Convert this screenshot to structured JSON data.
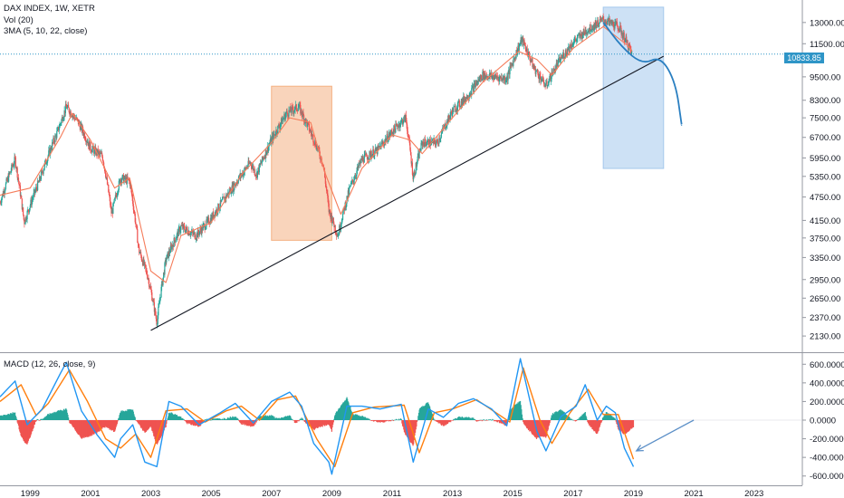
{
  "chart_data": [
    {
      "type": "candlestick",
      "title": "DAX INDEX, 1W, XETR",
      "indicators": [
        "Vol (20)",
        "3MA (5, 10, 22, close)"
      ],
      "y_scale": "log",
      "ylim": [
        1950,
        14800
      ],
      "y_ticks": [
        "13000.00",
        "11500.00",
        "10833.85",
        "9500.00",
        "8300.00",
        "7500.00",
        "6700.00",
        "5950.00",
        "5350.00",
        "4750.00",
        "4150.00",
        "3750.00",
        "3350.00",
        "2950.00",
        "2650.00",
        "2370.00",
        "2130.00"
      ],
      "x_ticks": [
        "1999",
        "2001",
        "2003",
        "2005",
        "2007",
        "2009",
        "2011",
        "2013",
        "2015",
        "2017",
        "2019",
        "2021",
        "2023"
      ],
      "last_price": "10833.85",
      "price_path": [
        [
          1998.0,
          4600
        ],
        [
          1998.5,
          5900
        ],
        [
          1998.8,
          4100
        ],
        [
          1999.3,
          5200
        ],
        [
          1999.9,
          6900
        ],
        [
          2000.2,
          8000
        ],
        [
          2000.6,
          7300
        ],
        [
          2001.0,
          6300
        ],
        [
          2001.4,
          6000
        ],
        [
          2001.7,
          4300
        ],
        [
          2002.0,
          5300
        ],
        [
          2002.3,
          5200
        ],
        [
          2002.6,
          3500
        ],
        [
          2002.9,
          3000
        ],
        [
          2003.2,
          2300
        ],
        [
          2003.5,
          3300
        ],
        [
          2004.0,
          4000
        ],
        [
          2004.5,
          3800
        ],
        [
          2005.0,
          4200
        ],
        [
          2005.7,
          5000
        ],
        [
          2006.3,
          5800
        ],
        [
          2006.5,
          5400
        ],
        [
          2007.0,
          6600
        ],
        [
          2007.5,
          7700
        ],
        [
          2007.9,
          8000
        ],
        [
          2008.3,
          6900
        ],
        [
          2008.7,
          5800
        ],
        [
          2008.9,
          4400
        ],
        [
          2009.2,
          3800
        ],
        [
          2009.6,
          5000
        ],
        [
          2010.0,
          5900
        ],
        [
          2010.5,
          6200
        ],
        [
          2011.2,
          7200
        ],
        [
          2011.45,
          7500
        ],
        [
          2011.7,
          5300
        ],
        [
          2012.0,
          6500
        ],
        [
          2012.5,
          6500
        ],
        [
          2013.0,
          7800
        ],
        [
          2013.5,
          8500
        ],
        [
          2014.0,
          9600
        ],
        [
          2014.8,
          9400
        ],
        [
          2015.3,
          11800
        ],
        [
          2015.7,
          10000
        ],
        [
          2016.1,
          9000
        ],
        [
          2016.5,
          10300
        ],
        [
          2017.0,
          11600
        ],
        [
          2017.5,
          12500
        ],
        [
          2018.0,
          13200
        ],
        [
          2018.5,
          12700
        ],
        [
          2018.96,
          10833.85
        ]
      ],
      "ma_path": [
        [
          1998.0,
          4800
        ],
        [
          1999.0,
          5000
        ],
        [
          2000.0,
          6700
        ],
        [
          2000.4,
          7700
        ],
        [
          2001.0,
          6600
        ],
        [
          2001.8,
          5000
        ],
        [
          2002.3,
          5300
        ],
        [
          2003.0,
          3100
        ],
        [
          2003.5,
          2900
        ],
        [
          2004.0,
          3800
        ],
        [
          2005.0,
          4100
        ],
        [
          2006.0,
          5400
        ],
        [
          2007.0,
          6500
        ],
        [
          2007.6,
          7500
        ],
        [
          2008.3,
          7300
        ],
        [
          2008.8,
          5400
        ],
        [
          2009.3,
          4300
        ],
        [
          2010.0,
          5600
        ],
        [
          2011.0,
          6800
        ],
        [
          2011.6,
          6600
        ],
        [
          2012.0,
          6100
        ],
        [
          2013.0,
          7500
        ],
        [
          2014.0,
          9200
        ],
        [
          2015.2,
          11000
        ],
        [
          2015.8,
          10500
        ],
        [
          2016.3,
          9600
        ],
        [
          2017.0,
          11200
        ],
        [
          2018.0,
          12700
        ],
        [
          2018.8,
          11400
        ],
        [
          2018.96,
          11000
        ]
      ],
      "trendline": [
        [
          2003.0,
          2200
        ],
        [
          2020.0,
          10700
        ]
      ],
      "forecast_curve": [
        [
          2018.0,
          13000
        ],
        [
          2018.6,
          11300
        ],
        [
          2019.3,
          10200
        ],
        [
          2019.9,
          10700
        ],
        [
          2020.4,
          9200
        ],
        [
          2020.6,
          7200
        ]
      ],
      "highlight_boxes": [
        {
          "color": "#f4b183",
          "x_range": [
            2007.0,
            2009.0
          ],
          "y_range": [
            3700,
            9000
          ]
        },
        {
          "color": "#a4c8ec",
          "x_range": [
            2018.0,
            2020.0
          ],
          "y_range": [
            5600,
            14200
          ]
        }
      ]
    },
    {
      "type": "macd",
      "title": "MACD (12, 26, close, 9)",
      "ylim": [
        -700,
        700
      ],
      "y_ticks": [
        "600.0000",
        "400.0000",
        "200.0000",
        "0.0000",
        "-200.0000",
        "-400.0000",
        "-600.0000"
      ],
      "macd": [
        [
          1998.0,
          250
        ],
        [
          1998.5,
          420
        ],
        [
          1998.9,
          -50
        ],
        [
          1999.4,
          120
        ],
        [
          2000.0,
          500
        ],
        [
          2000.2,
          620
        ],
        [
          2000.7,
          100
        ],
        [
          2001.2,
          -150
        ],
        [
          2001.8,
          -400
        ],
        [
          2002.0,
          -200
        ],
        [
          2002.4,
          -50
        ],
        [
          2002.8,
          -450
        ],
        [
          2003.2,
          -500
        ],
        [
          2003.6,
          200
        ],
        [
          2004.0,
          150
        ],
        [
          2004.6,
          -50
        ],
        [
          2005.3,
          80
        ],
        [
          2005.8,
          180
        ],
        [
          2006.4,
          -30
        ],
        [
          2007.0,
          200
        ],
        [
          2007.6,
          300
        ],
        [
          2008.0,
          150
        ],
        [
          2008.4,
          -250
        ],
        [
          2008.9,
          -450
        ],
        [
          2009.0,
          -580
        ],
        [
          2009.5,
          150
        ],
        [
          2010.0,
          150
        ],
        [
          2010.6,
          120
        ],
        [
          2011.3,
          170
        ],
        [
          2011.7,
          -450
        ],
        [
          2012.2,
          120
        ],
        [
          2012.7,
          30
        ],
        [
          2013.2,
          180
        ],
        [
          2013.7,
          230
        ],
        [
          2014.3,
          120
        ],
        [
          2014.8,
          -60
        ],
        [
          2015.25,
          660
        ],
        [
          2015.8,
          -120
        ],
        [
          2016.1,
          -330
        ],
        [
          2016.6,
          40
        ],
        [
          2017.1,
          150
        ],
        [
          2017.4,
          380
        ],
        [
          2017.8,
          0
        ],
        [
          2018.1,
          150
        ],
        [
          2018.4,
          80
        ],
        [
          2018.7,
          -300
        ],
        [
          2019.0,
          -500
        ]
      ],
      "signal": [
        [
          1998.0,
          200
        ],
        [
          1998.7,
          380
        ],
        [
          1999.2,
          50
        ],
        [
          1999.6,
          180
        ],
        [
          2000.3,
          540
        ],
        [
          2000.9,
          200
        ],
        [
          2001.5,
          -200
        ],
        [
          2002.0,
          -300
        ],
        [
          2002.5,
          -150
        ],
        [
          2003.0,
          -400
        ],
        [
          2003.5,
          100
        ],
        [
          2004.2,
          120
        ],
        [
          2004.8,
          -20
        ],
        [
          2005.5,
          100
        ],
        [
          2006.0,
          150
        ],
        [
          2006.6,
          0
        ],
        [
          2007.2,
          220
        ],
        [
          2007.8,
          260
        ],
        [
          2008.5,
          -200
        ],
        [
          2009.1,
          -500
        ],
        [
          2009.7,
          80
        ],
        [
          2010.4,
          140
        ],
        [
          2011.4,
          160
        ],
        [
          2011.9,
          -350
        ],
        [
          2012.4,
          80
        ],
        [
          2013.0,
          120
        ],
        [
          2013.8,
          220
        ],
        [
          2014.9,
          -20
        ],
        [
          2015.35,
          560
        ],
        [
          2015.9,
          0
        ],
        [
          2016.3,
          -250
        ],
        [
          2016.9,
          80
        ],
        [
          2017.5,
          330
        ],
        [
          2018.0,
          60
        ],
        [
          2018.5,
          60
        ],
        [
          2019.0,
          -420
        ]
      ],
      "arrow": {
        "from": [
          2021.0,
          0
        ],
        "to": [
          2019.1,
          -330
        ]
      }
    }
  ],
  "price_tag": "10833.85"
}
